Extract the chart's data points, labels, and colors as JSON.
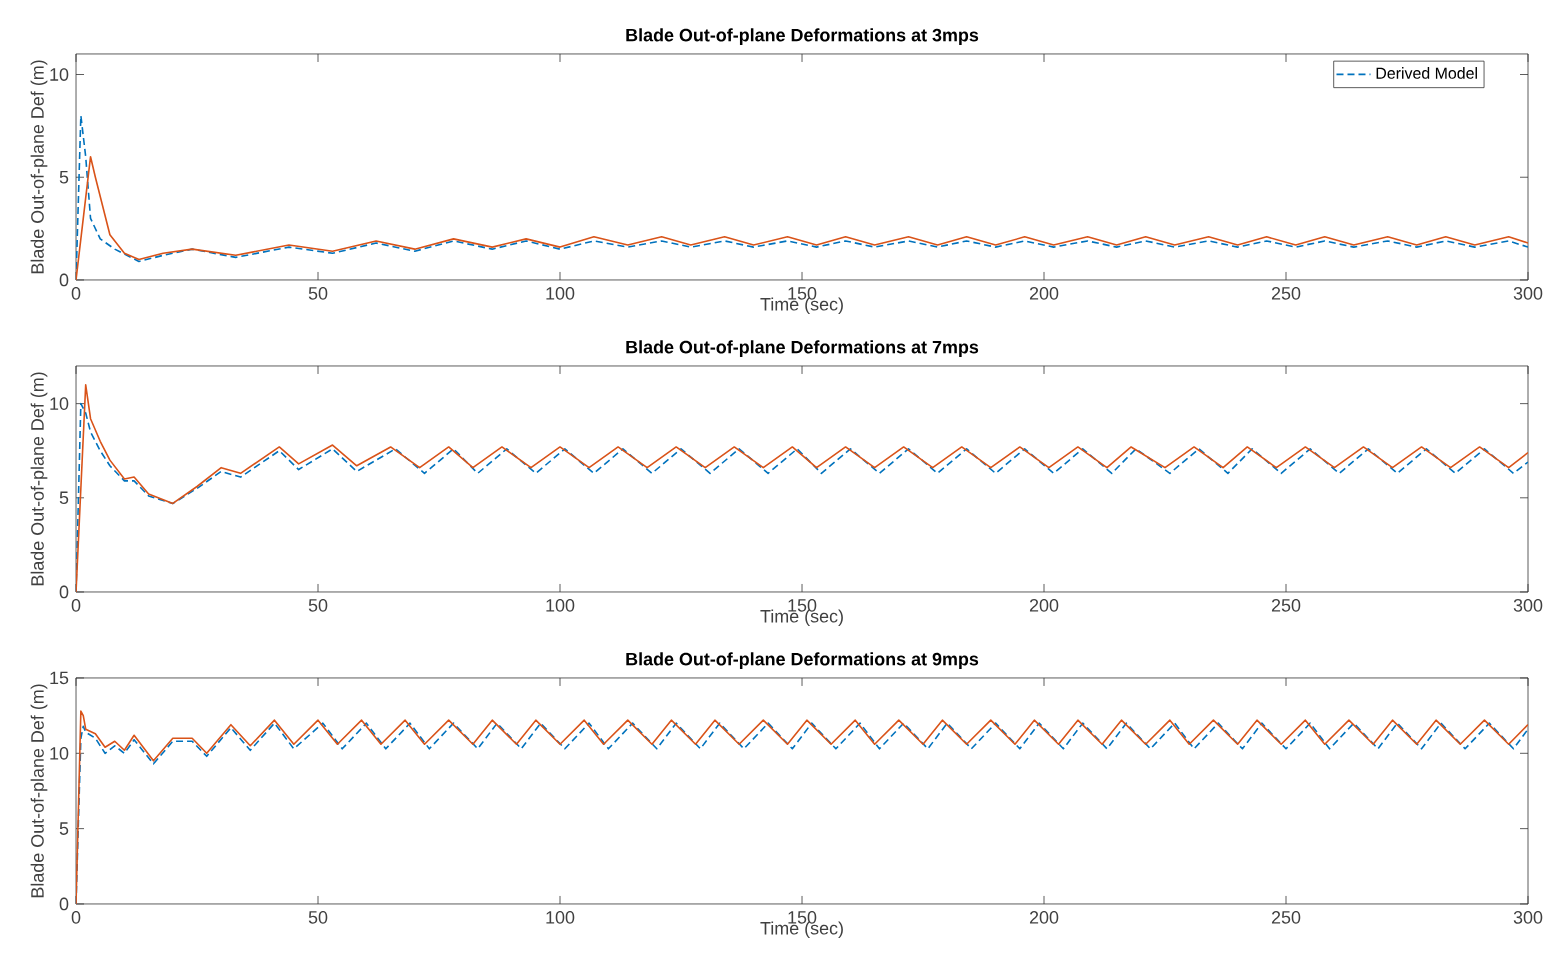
{
  "chart_data": [
    {
      "type": "line",
      "title": "Blade Out-of-plane Deformations at 3mps",
      "xlabel": "Time (sec)",
      "ylabel": "Blade Out-of-plane Def (m)",
      "xlim": [
        0,
        300
      ],
      "xticks": [
        0,
        50,
        100,
        150,
        200,
        250,
        300
      ],
      "ylim": [
        0,
        11
      ],
      "yticks": [
        0,
        5,
        10
      ],
      "legend": "top right",
      "series": [
        {
          "name": "Derived Model",
          "color": "#0072bd",
          "line_style": "dashed",
          "x": [
            0,
            1,
            2,
            3,
            5,
            8,
            13,
            18,
            24,
            33,
            44,
            53,
            62,
            70,
            78,
            86,
            93,
            100,
            107,
            114,
            121,
            127,
            134,
            140,
            147,
            153,
            159,
            165,
            172,
            178,
            184,
            190,
            196,
            202,
            209,
            215,
            221,
            227,
            234,
            240,
            246,
            252,
            258,
            264,
            271,
            277,
            283,
            289,
            296,
            300
          ],
          "values": [
            0,
            8,
            6,
            3,
            2,
            1.5,
            0.9,
            1.2,
            1.5,
            1.1,
            1.6,
            1.3,
            1.8,
            1.4,
            1.9,
            1.5,
            1.9,
            1.5,
            1.9,
            1.6,
            1.9,
            1.6,
            1.9,
            1.6,
            1.9,
            1.6,
            1.9,
            1.6,
            1.9,
            1.6,
            1.9,
            1.6,
            1.9,
            1.6,
            1.9,
            1.6,
            1.9,
            1.6,
            1.9,
            1.6,
            1.9,
            1.6,
            1.9,
            1.6,
            1.9,
            1.6,
            1.9,
            1.6,
            1.9,
            1.6
          ]
        },
        {
          "color": "#d95319",
          "line_style": "solid",
          "x": [
            0,
            1,
            2,
            3,
            4,
            7,
            10,
            13,
            18,
            24,
            33,
            44,
            53,
            62,
            70,
            78,
            86,
            93,
            100,
            107,
            114,
            121,
            127,
            134,
            140,
            147,
            153,
            159,
            165,
            172,
            178,
            184,
            190,
            196,
            202,
            209,
            215,
            221,
            227,
            234,
            240,
            246,
            252,
            258,
            264,
            271,
            277,
            283,
            289,
            296,
            300
          ],
          "values": [
            0,
            null,
            null,
            6,
            5,
            2.2,
            1.3,
            1,
            1.3,
            1.5,
            1.2,
            1.7,
            1.4,
            1.9,
            1.5,
            2.0,
            1.6,
            2.0,
            1.6,
            2.1,
            1.7,
            2.1,
            1.7,
            2.1,
            1.7,
            2.1,
            1.7,
            2.1,
            1.7,
            2.1,
            1.7,
            2.1,
            1.7,
            2.1,
            1.7,
            2.1,
            1.7,
            2.1,
            1.7,
            2.1,
            1.7,
            2.1,
            1.7,
            2.1,
            1.7,
            2.1,
            1.7,
            2.1,
            1.7,
            2.1,
            1.8
          ]
        }
      ]
    },
    {
      "type": "line",
      "title": "Blade Out-of-plane Deformations at 7mps",
      "xlabel": "Time (sec)",
      "ylabel": "Blade Out-of-plane Def (m)",
      "xlim": [
        0,
        300
      ],
      "xticks": [
        0,
        50,
        100,
        150,
        200,
        250,
        300
      ],
      "ylim": [
        0,
        12
      ],
      "yticks": [
        0,
        5,
        10
      ],
      "series": [
        {
          "color": "#0072bd",
          "line_style": "dashed",
          "x": [
            0,
            1,
            2,
            3,
            5,
            7,
            10,
            12,
            15,
            20,
            25,
            30,
            34,
            42,
            46,
            53,
            58,
            66,
            72,
            78,
            83,
            89,
            95,
            101,
            107,
            113,
            119,
            125,
            131,
            137,
            143,
            149,
            154,
            160,
            166,
            172,
            178,
            184,
            190,
            196,
            202,
            208,
            214,
            219,
            226,
            232,
            238,
            243,
            249,
            255,
            261,
            267,
            273,
            279,
            285,
            291,
            297,
            300
          ],
          "values": [
            0,
            10,
            9.5,
            8.5,
            7.5,
            6.7,
            5.9,
            5.9,
            5.1,
            4.7,
            5.5,
            6.4,
            6.1,
            7.5,
            6.5,
            7.6,
            6.4,
            7.6,
            6.3,
            7.6,
            6.3,
            7.6,
            6.3,
            7.6,
            6.3,
            7.6,
            6.3,
            7.6,
            6.3,
            7.6,
            6.3,
            7.6,
            6.3,
            7.6,
            6.3,
            7.6,
            6.3,
            7.6,
            6.3,
            7.6,
            6.3,
            7.6,
            6.3,
            7.6,
            6.3,
            7.6,
            6.3,
            7.6,
            6.3,
            7.6,
            6.3,
            7.6,
            6.3,
            7.6,
            6.3,
            7.6,
            6.3,
            6.9
          ]
        },
        {
          "color": "#d95319",
          "line_style": "solid",
          "x": [
            0,
            1,
            2,
            3,
            5,
            7,
            10,
            12,
            15,
            20,
            25,
            30,
            34,
            42,
            46,
            53,
            58,
            65,
            71,
            77,
            82,
            88,
            94,
            100,
            106,
            112,
            118,
            124,
            130,
            136,
            142,
            148,
            153,
            159,
            165,
            171,
            177,
            183,
            189,
            195,
            201,
            207,
            213,
            218,
            225,
            231,
            237,
            242,
            248,
            254,
            260,
            266,
            272,
            278,
            284,
            290,
            296,
            300
          ],
          "values": [
            0,
            null,
            11,
            9.2,
            8,
            7,
            6,
            6.1,
            5.2,
            4.7,
            5.6,
            6.6,
            6.3,
            7.7,
            6.8,
            7.8,
            6.7,
            7.7,
            6.6,
            7.7,
            6.6,
            7.7,
            6.6,
            7.7,
            6.6,
            7.7,
            6.6,
            7.7,
            6.6,
            7.7,
            6.6,
            7.7,
            6.6,
            7.7,
            6.6,
            7.7,
            6.6,
            7.7,
            6.6,
            7.7,
            6.6,
            7.7,
            6.6,
            7.7,
            6.6,
            7.7,
            6.6,
            7.7,
            6.6,
            7.7,
            6.6,
            7.7,
            6.6,
            7.7,
            6.6,
            7.7,
            6.6,
            7.4
          ]
        }
      ]
    },
    {
      "type": "line",
      "title": "Blade Out-of-plane Deformations at 9mps",
      "xlabel": "Time (sec)",
      "ylabel": "Blade Out-of-plane Def (m)",
      "xlim": [
        0,
        300
      ],
      "xticks": [
        0,
        50,
        100,
        150,
        200,
        250,
        300
      ],
      "ylim": [
        0,
        15
      ],
      "yticks": [
        0,
        5,
        10,
        15
      ],
      "series": [
        {
          "color": "#0072bd",
          "line_style": "dashed",
          "x": [
            0,
            1,
            1.5,
            2,
            4,
            6,
            8,
            10,
            12,
            16,
            20,
            24,
            27,
            32,
            36,
            41,
            45,
            51,
            55,
            60,
            64,
            69,
            73,
            78,
            83,
            87,
            92,
            96,
            101,
            106,
            110,
            115,
            120,
            124,
            129,
            133,
            138,
            143,
            148,
            152,
            157,
            162,
            166,
            171,
            176,
            180,
            185,
            190,
            195,
            199,
            204,
            208,
            213,
            217,
            222,
            227,
            231,
            236,
            241,
            245,
            250,
            255,
            259,
            264,
            269,
            273,
            278,
            282,
            287,
            292,
            297,
            300
          ],
          "values": [
            0,
            11,
            11.8,
            11.4,
            11,
            10,
            10.5,
            10,
            10.9,
            9.3,
            10.8,
            10.8,
            9.8,
            11.7,
            10.2,
            12,
            10.3,
            12,
            10.3,
            12,
            10.3,
            12,
            10.3,
            12,
            10.3,
            12,
            10.3,
            12,
            10.3,
            12,
            10.3,
            12,
            10.3,
            12,
            10.3,
            12,
            10.3,
            12,
            10.3,
            12,
            10.3,
            12,
            10.3,
            12,
            10.3,
            12,
            10.3,
            12,
            10.3,
            12,
            10.3,
            12,
            10.3,
            12,
            10.3,
            12,
            10.3,
            12,
            10.3,
            12,
            10.3,
            12,
            10.3,
            12,
            10.3,
            12,
            10.3,
            12,
            10.3,
            12,
            10.3,
            11.6
          ]
        },
        {
          "color": "#d95319",
          "line_style": "solid",
          "x": [
            0,
            1,
            1.5,
            2,
            4,
            6,
            8,
            10,
            12,
            16,
            20,
            24,
            27,
            32,
            36,
            41,
            45,
            50,
            54,
            59,
            63,
            68,
            72,
            77,
            82,
            86,
            91,
            95,
            100,
            105,
            109,
            114,
            119,
            123,
            128,
            132,
            137,
            142,
            147,
            151,
            156,
            161,
            165,
            170,
            175,
            179,
            184,
            189,
            194,
            198,
            203,
            207,
            212,
            216,
            221,
            226,
            230,
            235,
            240,
            244,
            249,
            254,
            258,
            263,
            268,
            272,
            277,
            281,
            286,
            291,
            296,
            300
          ],
          "values": [
            0,
            12.8,
            12.5,
            11.6,
            11.3,
            10.4,
            10.8,
            10.2,
            11.2,
            9.5,
            11,
            11,
            10,
            11.9,
            10.5,
            12.2,
            10.6,
            12.2,
            10.6,
            12.2,
            10.6,
            12.2,
            10.6,
            12.2,
            10.6,
            12.2,
            10.6,
            12.2,
            10.6,
            12.2,
            10.6,
            12.2,
            10.6,
            12.2,
            10.6,
            12.2,
            10.6,
            12.2,
            10.6,
            12.2,
            10.6,
            12.2,
            10.6,
            12.2,
            10.6,
            12.2,
            10.6,
            12.2,
            10.6,
            12.2,
            10.6,
            12.2,
            10.6,
            12.2,
            10.6,
            12.2,
            10.6,
            12.2,
            10.6,
            12.2,
            10.6,
            12.2,
            10.6,
            12.2,
            10.6,
            12.2,
            10.6,
            12.2,
            10.6,
            12.2,
            10.6,
            11.9
          ]
        }
      ]
    }
  ]
}
